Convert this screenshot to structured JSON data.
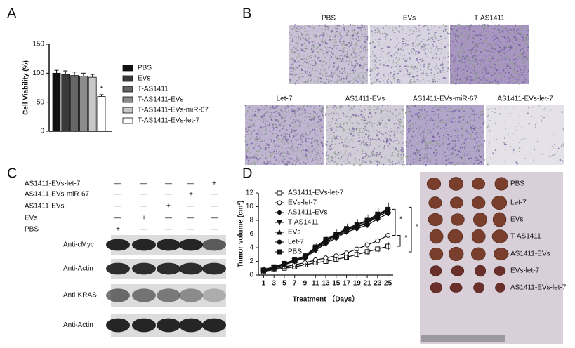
{
  "panel_labels": [
    "A",
    "B",
    "C",
    "D"
  ],
  "chart_data": [
    {
      "type": "bar",
      "y_label": "Cell Viability (%)",
      "categories": [
        "PBS",
        "EVs",
        "T-AS1411",
        "T-AS1411-EVs",
        "T-AS1411-EVs-miR-67",
        "T-AS1411-EVs-let-7"
      ],
      "values": [
        100,
        98,
        96,
        95,
        93,
        60
      ],
      "errors": [
        5,
        6,
        6,
        5,
        5,
        3
      ],
      "colors": [
        "#111111",
        "#3a3a3a",
        "#666666",
        "#8c8c8c",
        "#c8c8c8",
        "#ffffff"
      ],
      "ylim": [
        0,
        150
      ],
      "yticks": [
        0,
        50,
        100,
        150
      ],
      "annotation": "*"
    },
    {
      "type": "line",
      "x_label": "Treatment （Days）",
      "y_label": "Tumor volume (cm³)",
      "x": [
        1,
        3,
        5,
        7,
        9,
        11,
        13,
        15,
        17,
        19,
        21,
        23,
        25
      ],
      "xlim": [
        0,
        26
      ],
      "xticks": [
        1,
        3,
        5,
        7,
        9,
        11,
        13,
        15,
        17,
        19,
        21,
        23,
        25
      ],
      "ylim": [
        0,
        12
      ],
      "yticks": [
        0,
        2,
        4,
        6,
        8,
        10,
        12
      ],
      "series": [
        {
          "name": "AS1411-EVs-let-7",
          "color": "#111111",
          "values": [
            0.5,
            0.8,
            1.0,
            1.2,
            1.5,
            1.8,
            2.0,
            2.3,
            2.6,
            3.0,
            3.4,
            3.8,
            4.2
          ]
        },
        {
          "name": "EVs-let-7",
          "color": "#111111",
          "values": [
            0.6,
            0.9,
            1.2,
            1.5,
            1.8,
            2.2,
            2.5,
            2.8,
            3.2,
            3.8,
            4.4,
            5.0,
            5.8
          ]
        },
        {
          "name": "AS1411-EVs",
          "color": "#111111",
          "values": [
            0.7,
            1.0,
            1.5,
            2.0,
            2.5,
            3.6,
            4.6,
            5.4,
            6.3,
            6.8,
            7.3,
            8.2,
            9.0
          ]
        },
        {
          "name": "T-AS1411",
          "color": "#111111",
          "values": [
            0.7,
            1.1,
            1.6,
            2.1,
            2.6,
            3.8,
            4.8,
            5.6,
            6.5,
            7.0,
            7.6,
            8.5,
            9.3
          ]
        },
        {
          "name": "EVs",
          "color": "#111111",
          "values": [
            0.8,
            1.1,
            1.6,
            2.1,
            2.7,
            3.9,
            5.0,
            5.8,
            6.6,
            7.1,
            7.7,
            8.7,
            9.5
          ]
        },
        {
          "name": "Let-7",
          "color": "#111111",
          "values": [
            0.8,
            1.2,
            1.7,
            2.2,
            2.8,
            4.0,
            5.1,
            5.9,
            6.7,
            7.3,
            7.9,
            8.8,
            9.6
          ]
        },
        {
          "name": "PBS",
          "color": "#111111",
          "values": [
            0.7,
            1.2,
            1.7,
            2.2,
            2.8,
            4.1,
            5.2,
            6.0,
            6.8,
            7.4,
            8.0,
            8.9,
            9.6
          ]
        }
      ],
      "annotations": [
        "*",
        "*",
        "*"
      ]
    }
  ],
  "micrographs": [
    "PBS",
    "EVs",
    "T-AS1411",
    "Let-7",
    "AS1411-EVs",
    "AS1411-EVs-miR-67",
    "AS1411-EVs-let-7"
  ],
  "blot": {
    "conditions": [
      {
        "label": "AS1411-EVs-let-7",
        "cells": [
          "—",
          "—",
          "—",
          "—",
          "+"
        ]
      },
      {
        "label": "AS1411-EVs-miR-67",
        "cells": [
          "—",
          "—",
          "—",
          "+",
          "—"
        ]
      },
      {
        "label": "AS1411-EVs",
        "cells": [
          "—",
          "—",
          "+",
          "—",
          "—"
        ]
      },
      {
        "label": "EVs",
        "cells": [
          "—",
          "+",
          "—",
          "—",
          "—"
        ]
      },
      {
        "label": "PBS",
        "cells": [
          "+",
          "—",
          "—",
          "—",
          "—"
        ]
      }
    ],
    "antibodies": [
      "Anti-cMyc",
      "Anti-Actin",
      "Anti-KRAS",
      "Anti-Actin"
    ]
  },
  "tumor_labels": [
    "PBS",
    "Let-7",
    "EVs",
    "T-AS1411",
    "AS1411-EVs",
    "EVs-let-7",
    "AS1411-EVs-let-7"
  ]
}
